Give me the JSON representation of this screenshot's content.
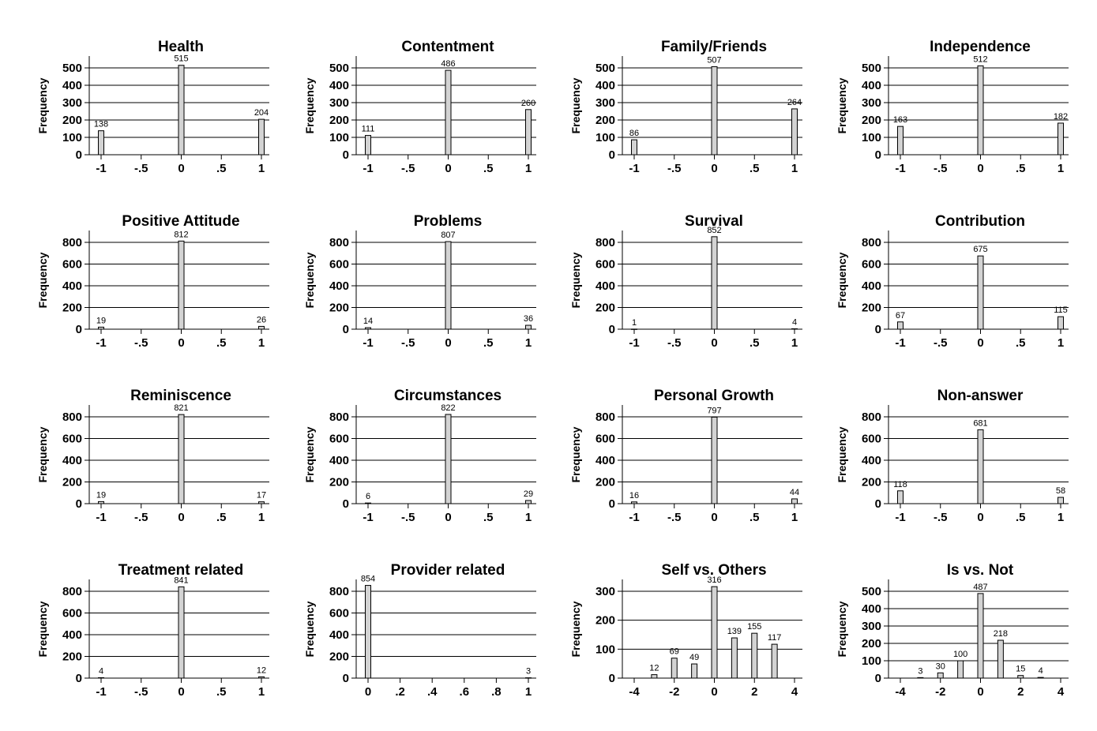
{
  "chart_data": [
    {
      "type": "bar",
      "title": "Health",
      "ylabel": "Frequency",
      "x": [
        -1,
        0,
        1
      ],
      "values": [
        138,
        515,
        204
      ],
      "ylim": [
        0,
        500
      ],
      "yticks": [
        0,
        100,
        200,
        300,
        400,
        500
      ],
      "xlim": [
        -1,
        1
      ],
      "xticks": [
        "-1",
        "-.5",
        "0",
        ".5",
        "1"
      ],
      "grid": true
    },
    {
      "type": "bar",
      "title": "Contentment",
      "ylabel": "Frequency",
      "x": [
        -1,
        0,
        1
      ],
      "values": [
        111,
        486,
        260
      ],
      "ylim": [
        0,
        500
      ],
      "yticks": [
        0,
        100,
        200,
        300,
        400,
        500
      ],
      "xlim": [
        -1,
        1
      ],
      "xticks": [
        "-1",
        "-.5",
        "0",
        ".5",
        "1"
      ],
      "grid": true
    },
    {
      "type": "bar",
      "title": "Family/Friends",
      "ylabel": "Frequency",
      "x": [
        -1,
        0,
        1
      ],
      "values": [
        86,
        507,
        264
      ],
      "ylim": [
        0,
        500
      ],
      "yticks": [
        0,
        100,
        200,
        300,
        400,
        500
      ],
      "xlim": [
        -1,
        1
      ],
      "xticks": [
        "-1",
        "-.5",
        "0",
        ".5",
        "1"
      ],
      "grid": true
    },
    {
      "type": "bar",
      "title": "Independence",
      "ylabel": "Frequency",
      "x": [
        -1,
        0,
        1
      ],
      "values": [
        163,
        512,
        182
      ],
      "ylim": [
        0,
        500
      ],
      "yticks": [
        0,
        100,
        200,
        300,
        400,
        500
      ],
      "xlim": [
        -1,
        1
      ],
      "xticks": [
        "-1",
        "-.5",
        "0",
        ".5",
        "1"
      ],
      "grid": true
    },
    {
      "type": "bar",
      "title": "Positive Attitude",
      "ylabel": "Frequency",
      "x": [
        -1,
        0,
        1
      ],
      "values": [
        19,
        812,
        26
      ],
      "ylim": [
        0,
        800
      ],
      "yticks": [
        0,
        200,
        400,
        600,
        800
      ],
      "xlim": [
        -1,
        1
      ],
      "xticks": [
        "-1",
        "-.5",
        "0",
        ".5",
        "1"
      ],
      "grid": true
    },
    {
      "type": "bar",
      "title": "Problems",
      "ylabel": "Frequency",
      "x": [
        -1,
        0,
        1
      ],
      "values": [
        14,
        807,
        36
      ],
      "ylim": [
        0,
        800
      ],
      "yticks": [
        0,
        200,
        400,
        600,
        800
      ],
      "xlim": [
        -1,
        1
      ],
      "xticks": [
        "-1",
        "-.5",
        "0",
        ".5",
        "1"
      ],
      "grid": true
    },
    {
      "type": "bar",
      "title": "Survival",
      "ylabel": "Frequency",
      "x": [
        -1,
        0,
        1
      ],
      "values": [
        1,
        852,
        4
      ],
      "ylim": [
        0,
        800
      ],
      "yticks": [
        0,
        200,
        400,
        600,
        800
      ],
      "xlim": [
        -1,
        1
      ],
      "xticks": [
        "-1",
        "-.5",
        "0",
        ".5",
        "1"
      ],
      "grid": true
    },
    {
      "type": "bar",
      "title": "Contribution",
      "ylabel": "Frequency",
      "x": [
        -1,
        0,
        1
      ],
      "values": [
        67,
        675,
        115
      ],
      "ylim": [
        0,
        800
      ],
      "yticks": [
        0,
        200,
        400,
        600,
        800
      ],
      "xlim": [
        -1,
        1
      ],
      "xticks": [
        "-1",
        "-.5",
        "0",
        ".5",
        "1"
      ],
      "grid": true
    },
    {
      "type": "bar",
      "title": "Reminiscence",
      "ylabel": "Frequency",
      "x": [
        -1,
        0,
        1
      ],
      "values": [
        19,
        821,
        17
      ],
      "ylim": [
        0,
        800
      ],
      "yticks": [
        0,
        200,
        400,
        600,
        800
      ],
      "xlim": [
        -1,
        1
      ],
      "xticks": [
        "-1",
        "-.5",
        "0",
        ".5",
        "1"
      ],
      "grid": true
    },
    {
      "type": "bar",
      "title": "Circumstances",
      "ylabel": "Frequency",
      "x": [
        -1,
        0,
        1
      ],
      "values": [
        6,
        822,
        29
      ],
      "ylim": [
        0,
        800
      ],
      "yticks": [
        0,
        200,
        400,
        600,
        800
      ],
      "xlim": [
        -1,
        1
      ],
      "xticks": [
        "-1",
        "-.5",
        "0",
        ".5",
        "1"
      ],
      "grid": true
    },
    {
      "type": "bar",
      "title": "Personal Growth",
      "ylabel": "Frequency",
      "x": [
        -1,
        0,
        1
      ],
      "values": [
        16,
        797,
        44
      ],
      "ylim": [
        0,
        800
      ],
      "yticks": [
        0,
        200,
        400,
        600,
        800
      ],
      "xlim": [
        -1,
        1
      ],
      "xticks": [
        "-1",
        "-.5",
        "0",
        ".5",
        "1"
      ],
      "grid": true
    },
    {
      "type": "bar",
      "title": "Non-answer",
      "ylabel": "Frequency",
      "x": [
        -1,
        0,
        1
      ],
      "values": [
        118,
        681,
        58
      ],
      "ylim": [
        0,
        800
      ],
      "yticks": [
        0,
        200,
        400,
        600,
        800
      ],
      "xlim": [
        -1,
        1
      ],
      "xticks": [
        "-1",
        "-.5",
        "0",
        ".5",
        "1"
      ],
      "grid": true
    },
    {
      "type": "bar",
      "title": "Treatment related",
      "ylabel": "Frequency",
      "x": [
        -1,
        0,
        1
      ],
      "values": [
        4,
        841,
        12
      ],
      "ylim": [
        0,
        800
      ],
      "yticks": [
        0,
        200,
        400,
        600,
        800
      ],
      "xlim": [
        -1,
        1
      ],
      "xticks": [
        "-1",
        "-.5",
        "0",
        ".5",
        "1"
      ],
      "grid": true
    },
    {
      "type": "bar",
      "title": "Provider related",
      "ylabel": "Frequency",
      "x": [
        0,
        1
      ],
      "values": [
        854,
        3
      ],
      "ylim": [
        0,
        800
      ],
      "yticks": [
        0,
        200,
        400,
        600,
        800
      ],
      "xlim": [
        0,
        1
      ],
      "xticks": [
        "0",
        ".2",
        ".4",
        ".6",
        ".8",
        "1"
      ],
      "grid": true
    },
    {
      "type": "bar",
      "title": "Self vs. Others",
      "ylabel": "Frequency",
      "x": [
        -3,
        -2,
        -1,
        0,
        1,
        2,
        3
      ],
      "values": [
        12,
        69,
        49,
        316,
        139,
        155,
        117
      ],
      "ylim": [
        0,
        300
      ],
      "yticks": [
        0,
        100,
        200,
        300
      ],
      "xlim": [
        -4,
        4
      ],
      "xticks": [
        "-4",
        "-2",
        "0",
        "2",
        "4"
      ],
      "grid": true
    },
    {
      "type": "bar",
      "title": "Is vs. Not",
      "ylabel": "Frequency",
      "x": [
        -3,
        -2,
        -1,
        0,
        1,
        2,
        3
      ],
      "values": [
        3,
        30,
        100,
        487,
        218,
        15,
        4
      ],
      "ylim": [
        0,
        500
      ],
      "yticks": [
        0,
        100,
        200,
        300,
        400,
        500
      ],
      "xlim": [
        -4,
        4
      ],
      "xticks": [
        "-4",
        "-2",
        "0",
        "2",
        "4"
      ],
      "grid": true
    }
  ]
}
